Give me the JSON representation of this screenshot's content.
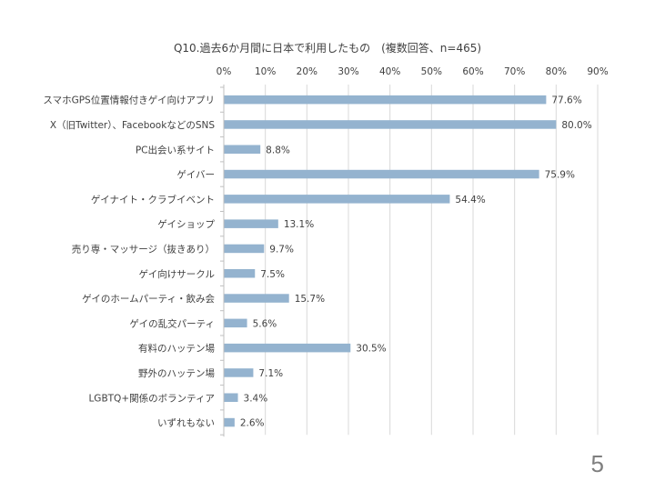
{
  "slide": {
    "page_number": "5"
  },
  "chart_data": {
    "type": "bar",
    "orientation": "horizontal",
    "title": "Q10.過去6か月間に日本で利用したもの　(複数回答、n=465)",
    "xlabel": "",
    "ylabel": "",
    "xlim": [
      0,
      90
    ],
    "x_ticks": [
      "0%",
      "10%",
      "20%",
      "30%",
      "40%",
      "50%",
      "60%",
      "70%",
      "80%",
      "90%"
    ],
    "grid": true,
    "legend": "none",
    "bar_color": "#94b3cf",
    "categories": [
      "スマホGPS位置情報付きゲイ向けアプリ",
      "X（旧Twitter）、FacebookなどのSNS",
      "PC出会い系サイト",
      "ゲイバー",
      "ゲイナイト・クラブイベント",
      "ゲイショップ",
      "売り専・マッサージ（抜きあり）",
      "ゲイ向けサークル",
      "ゲイのホームパーティ・飲み会",
      "ゲイの乱交パーティ",
      "有料のハッテン場",
      "野外のハッテン場",
      "LGBTQ+関係のボランティア",
      "いずれもない"
    ],
    "values": [
      77.6,
      80.0,
      8.8,
      75.9,
      54.4,
      13.1,
      9.7,
      7.5,
      15.7,
      5.6,
      30.5,
      7.1,
      3.4,
      2.6
    ],
    "data_labels": [
      "77.6%",
      "80.0%",
      "8.8%",
      "75.9%",
      "54.4%",
      "13.1%",
      "9.7%",
      "7.5%",
      "15.7%",
      "5.6%",
      "30.5%",
      "7.1%",
      "3.4%",
      "2.6%"
    ]
  }
}
